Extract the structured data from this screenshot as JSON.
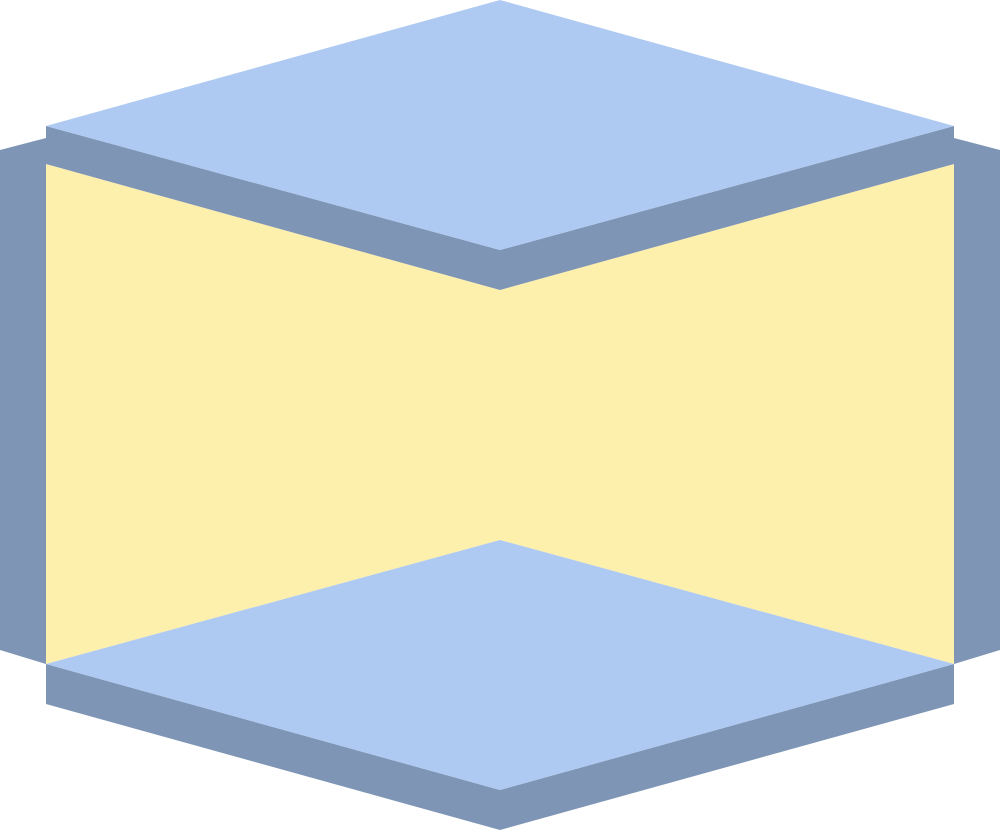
{
  "diagram": {
    "type": "isometric-shapes",
    "colors": {
      "background": "#ffffff",
      "top_plate": "#aecaf2",
      "bottom_plate": "#aecaf2",
      "edge": "#7f95b5",
      "inner_panel": "#fdefac"
    }
  }
}
